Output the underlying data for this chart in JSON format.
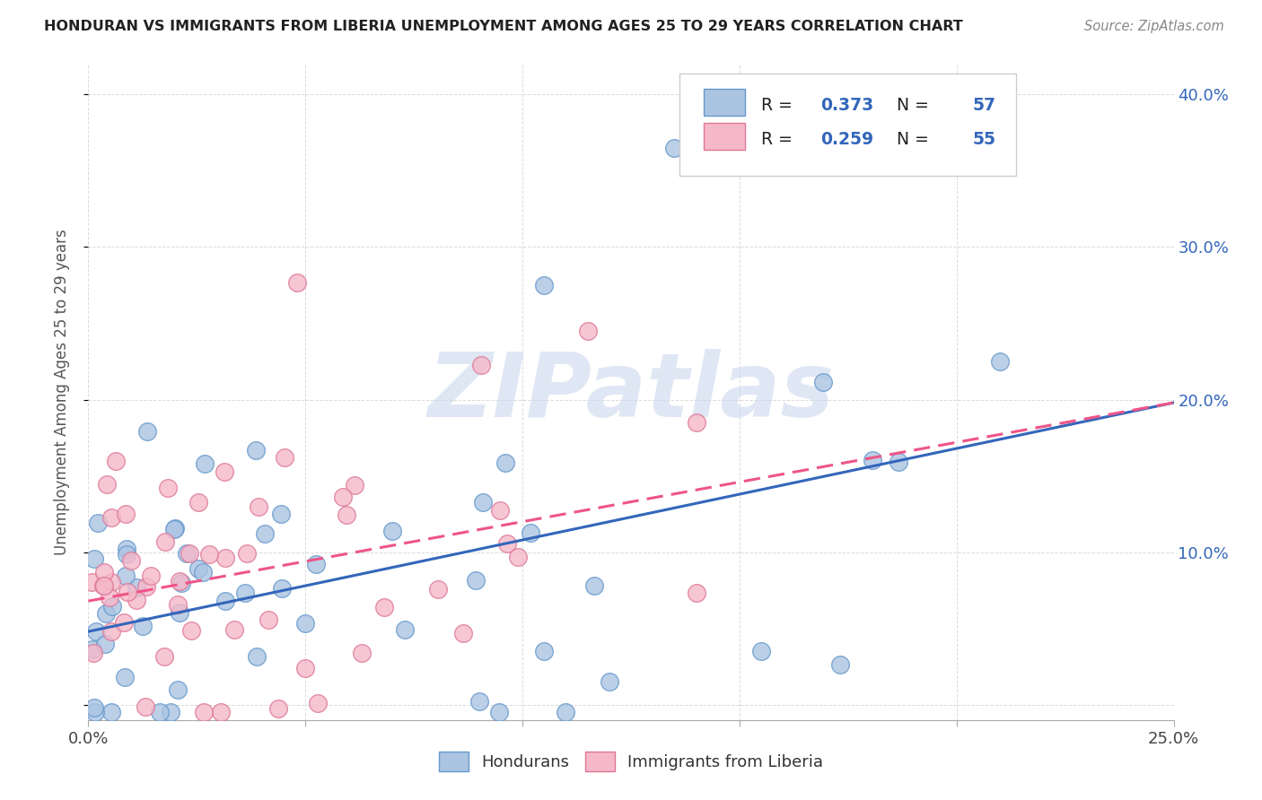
{
  "title": "HONDURAN VS IMMIGRANTS FROM LIBERIA UNEMPLOYMENT AMONG AGES 25 TO 29 YEARS CORRELATION CHART",
  "source": "Source: ZipAtlas.com",
  "ylabel": "Unemployment Among Ages 25 to 29 years",
  "xlim": [
    0.0,
    0.25
  ],
  "ylim": [
    -0.01,
    0.42
  ],
  "series1_color": "#aac4e2",
  "series1_edge": "#6699cc",
  "series2_color": "#f5b8c8",
  "series2_edge": "#dd7799",
  "line1_color": "#3366bb",
  "line2_color": "#ee5588",
  "line1_solid": true,
  "line2_dashed": true,
  "R1": 0.373,
  "N1": 57,
  "R2": 0.259,
  "N2": 55,
  "legend_label1": "Hondurans",
  "legend_label2": "Immigrants from Liberia",
  "watermark": "ZIPatlas",
  "watermark_color": "#ccd8ee",
  "background_color": "#ffffff",
  "grid_color": "#cccccc",
  "title_color": "#222222",
  "source_color": "#888888",
  "ylabel_color": "#555555",
  "legend_text_color": "#222222",
  "legend_val_color": "#3366bb",
  "ytick_color": "#3366bb",
  "line1_m": 0.6,
  "line1_b": 0.048,
  "line2_m": 0.52,
  "line2_b": 0.068,
  "seed": 17
}
